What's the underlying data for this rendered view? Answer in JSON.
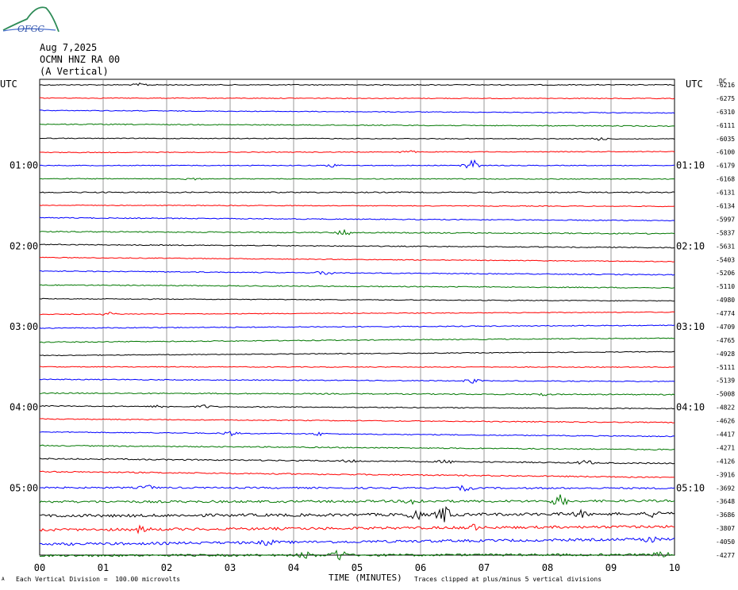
{
  "header": {
    "logo_text": "OFGC",
    "date": "Aug 7,2025",
    "station": "OCMN HNZ RA 00",
    "component": "(A Vertical)",
    "utc_left": "UTC",
    "utc_right": "UTC",
    "dc_label": "DC"
  },
  "footer": {
    "scale_note": "Each Vertical Division =  100.00 microvolts",
    "xlabel": "TIME (MINUTES)",
    "clip_note": "Traces clipped at plus/minus 5 vertical divisions",
    "corner_mark": "A"
  },
  "colors": {
    "trace_cycle": [
      "#000000",
      "#ff0000",
      "#0000ff",
      "#007700"
    ],
    "grid": "#808080"
  },
  "chart_data": {
    "type": "line",
    "title": "OCMN HNZ RA 00 (A Vertical) Aug 7,2025",
    "xlabel": "TIME (MINUTES)",
    "ylabel": "",
    "xlim": [
      0,
      10
    ],
    "x_ticks": [
      "00",
      "01",
      "02",
      "03",
      "04",
      "05",
      "06",
      "07",
      "08",
      "09",
      "10"
    ],
    "left_time_labels": [
      {
        "row": 6,
        "label": "01:00"
      },
      {
        "row": 12,
        "label": "02:00"
      },
      {
        "row": 18,
        "label": "03:00"
      },
      {
        "row": 24,
        "label": "04:00"
      },
      {
        "row": 30,
        "label": "05:00"
      }
    ],
    "right_time_labels": [
      {
        "row": 6,
        "label": "01:10"
      },
      {
        "row": 12,
        "label": "02:10"
      },
      {
        "row": 18,
        "label": "03:10"
      },
      {
        "row": 24,
        "label": "04:10"
      },
      {
        "row": 30,
        "label": "05:10"
      }
    ],
    "dc_offsets": [
      "-6216",
      "-6275",
      "-6310",
      "-6111",
      "-6035",
      "-6100",
      "-6179",
      "-6168",
      "-6131",
      "-6134",
      "-5997",
      "-5837",
      "-5631",
      "-5403",
      "-5206",
      "-5110",
      "-4980",
      "-4774",
      "-4709",
      "-4765",
      "-4928",
      "-5111",
      "-5139",
      "-5008",
      "-4822",
      "-4626",
      "-4417",
      "-4271",
      "-4126",
      "-3916",
      "-3692",
      "-3648",
      "-3686",
      "-3807",
      "-4050",
      "-4277"
    ],
    "traces": [
      {
        "drift": 0.0,
        "noise": 0.6,
        "events": [
          {
            "t": 1.6,
            "a": 2
          }
        ]
      },
      {
        "drift": 0.3,
        "noise": 0.5,
        "events": []
      },
      {
        "drift": 1.6,
        "noise": 0.5,
        "events": []
      },
      {
        "drift": 1.2,
        "noise": 0.6,
        "events": []
      },
      {
        "drift": 0.4,
        "noise": 0.5,
        "events": [
          {
            "t": 8.8,
            "a": 2
          }
        ]
      },
      {
        "drift": -0.6,
        "noise": 0.5,
        "events": [
          {
            "t": 5.8,
            "a": 2
          }
        ]
      },
      {
        "drift": 0.0,
        "noise": 0.5,
        "events": [
          {
            "t": 4.6,
            "a": 2
          },
          {
            "t": 6.78,
            "a": 10
          }
        ]
      },
      {
        "drift": 0.2,
        "noise": 0.5,
        "events": [
          {
            "t": 2.4,
            "a": 2
          }
        ]
      },
      {
        "drift": 0.0,
        "noise": 0.7,
        "events": []
      },
      {
        "drift": 0.7,
        "noise": 0.5,
        "events": []
      },
      {
        "drift": 1.8,
        "noise": 0.6,
        "events": []
      },
      {
        "drift": 1.3,
        "noise": 0.7,
        "events": [
          {
            "t": 4.8,
            "a": 4
          }
        ]
      },
      {
        "drift": 2.0,
        "noise": 0.6,
        "events": []
      },
      {
        "drift": 2.6,
        "noise": 0.5,
        "events": []
      },
      {
        "drift": 2.4,
        "noise": 0.6,
        "events": [
          {
            "t": 4.5,
            "a": 3
          }
        ]
      },
      {
        "drift": 1.8,
        "noise": 0.6,
        "events": []
      },
      {
        "drift": 1.4,
        "noise": 0.5,
        "events": []
      },
      {
        "drift": -1.4,
        "noise": 0.5,
        "events": [
          {
            "t": 1.1,
            "a": 2
          }
        ]
      },
      {
        "drift": -1.8,
        "noise": 0.6,
        "events": []
      },
      {
        "drift": -2.6,
        "noise": 0.6,
        "events": []
      },
      {
        "drift": -2.4,
        "noise": 0.5,
        "events": []
      },
      {
        "drift": 0.2,
        "noise": 0.5,
        "events": []
      },
      {
        "drift": 1.4,
        "noise": 0.6,
        "events": [
          {
            "t": 6.8,
            "a": 3
          }
        ]
      },
      {
        "drift": 1.0,
        "noise": 0.7,
        "events": [
          {
            "t": 7.9,
            "a": 2
          }
        ]
      },
      {
        "drift": 1.7,
        "noise": 0.6,
        "events": [
          {
            "t": 1.9,
            "a": 2
          },
          {
            "t": 2.6,
            "a": 2
          }
        ]
      },
      {
        "drift": 2.2,
        "noise": 0.6,
        "events": []
      },
      {
        "drift": 2.8,
        "noise": 0.6,
        "events": [
          {
            "t": 3.0,
            "a": 3
          },
          {
            "t": 4.4,
            "a": 2
          }
        ]
      },
      {
        "drift": 2.6,
        "noise": 0.7,
        "events": []
      },
      {
        "drift": 3.0,
        "noise": 0.8,
        "events": [
          {
            "t": 4.9,
            "a": 2
          },
          {
            "t": 6.4,
            "a": 2
          },
          {
            "t": 8.6,
            "a": 3
          }
        ]
      },
      {
        "drift": 3.6,
        "noise": 0.8,
        "events": []
      },
      {
        "drift": 0.4,
        "noise": 1.0,
        "events": [
          {
            "t": 1.7,
            "a": 3
          },
          {
            "t": 6.7,
            "a": 3
          }
        ]
      },
      {
        "drift": -0.6,
        "noise": 1.4,
        "events": [
          {
            "t": 5.9,
            "a": 4
          },
          {
            "t": 8.2,
            "a": 7
          }
        ]
      },
      {
        "drift": -1.4,
        "noise": 1.8,
        "events": [
          {
            "t": 5.9,
            "a": 7
          },
          {
            "t": 6.38,
            "a": 10
          },
          {
            "t": 8.5,
            "a": 4
          },
          {
            "t": 9.7,
            "a": 4
          }
        ]
      },
      {
        "drift": -2.2,
        "noise": 1.6,
        "events": [
          {
            "t": 1.6,
            "a": 4
          },
          {
            "t": 6.8,
            "a": 4
          }
        ]
      },
      {
        "drift": -3.4,
        "noise": 1.6,
        "events": [
          {
            "t": 3.6,
            "a": 3
          },
          {
            "t": 9.6,
            "a": 4
          }
        ]
      },
      {
        "drift": -0.6,
        "noise": 1.4,
        "events": [
          {
            "t": 4.2,
            "a": 4
          },
          {
            "t": 4.7,
            "a": 8
          },
          {
            "t": 9.8,
            "a": 3
          }
        ]
      }
    ]
  }
}
